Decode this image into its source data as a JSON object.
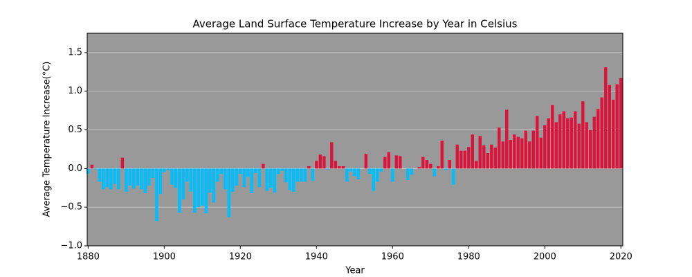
{
  "chart_data": {
    "type": "bar",
    "title": "Average Land Surface Temperature Increase by Year in Celsius",
    "xlabel": "Year",
    "ylabel": "Average Temperature Increase(°C)",
    "x": [
      1880,
      1881,
      1882,
      1883,
      1884,
      1885,
      1886,
      1887,
      1888,
      1889,
      1890,
      1891,
      1892,
      1893,
      1894,
      1895,
      1896,
      1897,
      1898,
      1899,
      1900,
      1901,
      1902,
      1903,
      1904,
      1905,
      1906,
      1907,
      1908,
      1909,
      1910,
      1911,
      1912,
      1913,
      1914,
      1915,
      1916,
      1917,
      1918,
      1919,
      1920,
      1921,
      1922,
      1923,
      1924,
      1925,
      1926,
      1927,
      1928,
      1929,
      1930,
      1931,
      1932,
      1933,
      1934,
      1935,
      1936,
      1937,
      1938,
      1939,
      1940,
      1941,
      1942,
      1943,
      1944,
      1945,
      1946,
      1947,
      1948,
      1949,
      1950,
      1951,
      1952,
      1953,
      1954,
      1955,
      1956,
      1957,
      1958,
      1959,
      1960,
      1961,
      1962,
      1963,
      1964,
      1965,
      1966,
      1967,
      1968,
      1969,
      1970,
      1971,
      1972,
      1973,
      1974,
      1975,
      1976,
      1977,
      1978,
      1979,
      1980,
      1981,
      1982,
      1983,
      1984,
      1985,
      1986,
      1987,
      1988,
      1989,
      1990,
      1991,
      1992,
      1993,
      1994,
      1995,
      1996,
      1997,
      1998,
      1999,
      2000,
      2001,
      2002,
      2003,
      2004,
      2005,
      2006,
      2007,
      2008,
      2009,
      2010,
      2011,
      2012,
      2013,
      2014,
      2015,
      2016,
      2017,
      2018,
      2019,
      2020
    ],
    "values": [
      -0.07,
      0.05,
      -0.01,
      -0.17,
      -0.27,
      -0.24,
      -0.27,
      -0.2,
      -0.27,
      0.14,
      -0.3,
      -0.22,
      -0.26,
      -0.22,
      -0.27,
      -0.32,
      -0.22,
      -0.12,
      -0.68,
      -0.33,
      -0.05,
      -0.02,
      -0.21,
      -0.25,
      -0.57,
      -0.4,
      -0.17,
      -0.3,
      -0.57,
      -0.5,
      -0.48,
      -0.58,
      -0.31,
      -0.44,
      -0.17,
      -0.07,
      -0.27,
      -0.63,
      -0.3,
      -0.22,
      -0.07,
      -0.24,
      -0.11,
      -0.32,
      -0.06,
      -0.24,
      0.06,
      -0.29,
      -0.25,
      -0.31,
      -0.07,
      -0.03,
      -0.18,
      -0.28,
      -0.3,
      -0.17,
      -0.17,
      -0.17,
      0.03,
      -0.16,
      0.1,
      0.18,
      0.16,
      -0.01,
      0.34,
      0.1,
      0.03,
      0.03,
      -0.17,
      -0.04,
      -0.1,
      -0.14,
      0.0,
      0.19,
      -0.07,
      -0.29,
      -0.17,
      -0.04,
      0.15,
      0.21,
      -0.17,
      0.17,
      0.16,
      0.0,
      -0.15,
      -0.08,
      0.0,
      0.02,
      0.15,
      0.11,
      0.06,
      -0.1,
      0.03,
      0.36,
      -0.02,
      0.11,
      -0.21,
      0.31,
      0.23,
      0.23,
      0.28,
      0.44,
      0.1,
      0.42,
      0.3,
      0.2,
      0.31,
      0.27,
      0.53,
      0.35,
      0.76,
      0.37,
      0.44,
      0.41,
      0.39,
      0.49,
      0.35,
      0.49,
      0.68,
      0.4,
      0.56,
      0.65,
      0.82,
      0.6,
      0.7,
      0.74,
      0.65,
      0.66,
      0.74,
      0.58,
      0.87,
      0.6,
      0.5,
      0.67,
      0.77,
      0.92,
      1.31,
      1.08,
      0.89,
      1.09,
      1.17
    ],
    "positive_color": "#dc143c",
    "negative_color": "#00bfff",
    "background": "#999999",
    "xlim": [
      1879.75,
      2020.5
    ],
    "xticks": [
      1880,
      1900,
      1920,
      1940,
      1960,
      1980,
      2000,
      2020
    ],
    "ylim": [
      -1.0,
      1.75
    ],
    "yticks": [
      {
        "value": -1.0,
        "label": "−1.0"
      },
      {
        "value": -0.5,
        "label": "−0.5"
      },
      {
        "value": 0.0,
        "label": "0.0"
      },
      {
        "value": 0.5,
        "label": "0.5"
      },
      {
        "value": 1.0,
        "label": "1.0"
      },
      {
        "value": 1.5,
        "label": "1.5"
      }
    ],
    "grid": true
  }
}
